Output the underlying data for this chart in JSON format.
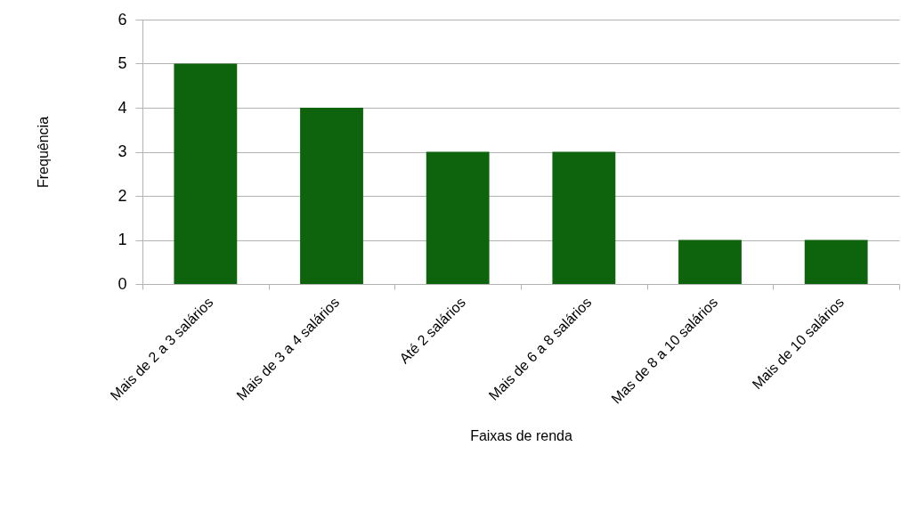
{
  "chart_data": {
    "type": "bar",
    "xlabel": "Faixas de renda",
    "ylabel": "Frequência",
    "categories": [
      "Mais de 2 a 3 salários",
      "Mais de 3 a 4 salários",
      "Até 2 salários",
      "Mais de 6 a 8 salários",
      "Mas de 8 a 10 salários",
      "Mais de 10 salários"
    ],
    "values": [
      5,
      4,
      3,
      3,
      1,
      1
    ],
    "color": "#0d640d",
    "ylim": [
      0,
      6
    ],
    "yticks": [
      0,
      1,
      2,
      3,
      4,
      5,
      6
    ],
    "grid": "y"
  }
}
